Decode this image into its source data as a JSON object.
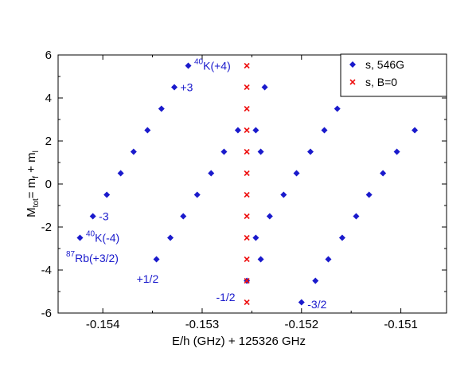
{
  "chart_data": {
    "type": "scatter",
    "xlabel": "E/h (GHz) + 125326 GHz",
    "ylabel_main": "M",
    "ylabel_sub": "tot",
    "ylabel_mid": "= m",
    "ylabel_sub2": "f",
    "ylabel_mid2": " + m",
    "ylabel_sub3": "l",
    "xlim": [
      -0.15445,
      -0.15054
    ],
    "ylim": [
      -6,
      6
    ],
    "xticks": [
      -0.154,
      -0.153,
      -0.152,
      -0.151
    ],
    "xtick_labels": [
      "-0.154",
      "-0.153",
      "-0.152",
      "-0.151"
    ],
    "yticks": [
      -6,
      -4,
      -2,
      0,
      2,
      4,
      6
    ],
    "ytick_labels": [
      "-6",
      "-4",
      "-2",
      "0",
      "2",
      "4",
      "6"
    ],
    "grid": false,
    "legend_position": "top-right",
    "series": [
      {
        "name": "s, 546G",
        "marker": "diamond",
        "color": "#1a1acc",
        "points": [
          {
            "x": -0.15423,
            "y": -2.5
          },
          {
            "x": -0.1541,
            "y": -1.5
          },
          {
            "x": -0.15396,
            "y": -0.5
          },
          {
            "x": -0.15382,
            "y": 0.5
          },
          {
            "x": -0.15369,
            "y": 1.5
          },
          {
            "x": -0.15355,
            "y": 2.5
          },
          {
            "x": -0.15341,
            "y": 3.5
          },
          {
            "x": -0.15328,
            "y": 4.5
          },
          {
            "x": -0.15314,
            "y": 5.5
          },
          {
            "x": -0.15346,
            "y": -3.5
          },
          {
            "x": -0.15332,
            "y": -2.5
          },
          {
            "x": -0.15319,
            "y": -1.5
          },
          {
            "x": -0.15305,
            "y": -0.5
          },
          {
            "x": -0.15291,
            "y": 0.5
          },
          {
            "x": -0.15278,
            "y": 1.5
          },
          {
            "x": -0.15264,
            "y": 2.5
          },
          {
            "x": -0.15255,
            "y": -4.5
          },
          {
            "x": -0.15246,
            "y": 2.5
          },
          {
            "x": -0.15237,
            "y": 4.5
          },
          {
            "x": -0.15241,
            "y": 1.5
          },
          {
            "x": -0.15246,
            "y": -2.5
          },
          {
            "x": -0.15241,
            "y": -3.5
          },
          {
            "x": -0.15232,
            "y": -1.5
          },
          {
            "x": -0.15218,
            "y": -0.5
          },
          {
            "x": -0.15205,
            "y": 0.5
          },
          {
            "x": -0.15191,
            "y": 1.5
          },
          {
            "x": -0.15177,
            "y": 2.5
          },
          {
            "x": -0.15164,
            "y": 3.5
          },
          {
            "x": -0.152,
            "y": -5.5
          },
          {
            "x": -0.15186,
            "y": -4.5
          },
          {
            "x": -0.15173,
            "y": -3.5
          },
          {
            "x": -0.15159,
            "y": -2.5
          },
          {
            "x": -0.15145,
            "y": -1.5
          },
          {
            "x": -0.15132,
            "y": -0.5
          },
          {
            "x": -0.15118,
            "y": 0.5
          },
          {
            "x": -0.15104,
            "y": 1.5
          },
          {
            "x": -0.15086,
            "y": 2.5
          }
        ]
      },
      {
        "name": "s, B=0",
        "marker": "x",
        "color": "#ee1111",
        "points": [
          {
            "x": -0.15255,
            "y": 5.5
          },
          {
            "x": -0.15255,
            "y": 4.5
          },
          {
            "x": -0.15255,
            "y": 3.5
          },
          {
            "x": -0.15255,
            "y": 2.5
          },
          {
            "x": -0.15255,
            "y": 1.5
          },
          {
            "x": -0.15255,
            "y": 0.5
          },
          {
            "x": -0.15255,
            "y": -0.5
          },
          {
            "x": -0.15255,
            "y": -1.5
          },
          {
            "x": -0.15255,
            "y": -2.5
          },
          {
            "x": -0.15255,
            "y": -3.5
          },
          {
            "x": -0.15255,
            "y": -4.5
          },
          {
            "x": -0.15255,
            "y": -5.5
          }
        ]
      }
    ],
    "annotations": [
      {
        "sup": "40",
        "text": "K(+4)",
        "x": -0.15308,
        "y": 5.5,
        "anchor": "start"
      },
      {
        "sup": "",
        "text": "+3",
        "x": -0.15322,
        "y": 4.5,
        "anchor": "start"
      },
      {
        "sup": "",
        "text": "-3",
        "x": -0.15404,
        "y": -1.5,
        "anchor": "start"
      },
      {
        "sup": "40",
        "text": "K(-4)",
        "x": -0.15417,
        "y": -2.5,
        "anchor": "start"
      },
      {
        "sup": "87",
        "text": "Rb(+3/2)",
        "x": -0.15437,
        "y": -3.45,
        "anchor": "start"
      },
      {
        "sup": "",
        "text": "+1/2",
        "x": -0.15366,
        "y": -4.4,
        "anchor": "start"
      },
      {
        "sup": "",
        "text": "-1/2",
        "x": -0.15286,
        "y": -5.25,
        "anchor": "start"
      },
      {
        "sup": "",
        "text": "-3/2",
        "x": -0.15194,
        "y": -5.6,
        "anchor": "start"
      }
    ]
  }
}
